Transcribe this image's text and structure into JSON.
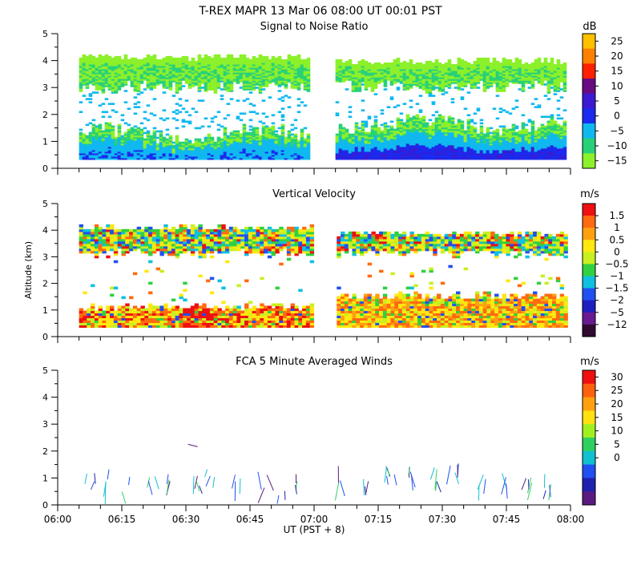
{
  "header": {
    "title": "T-REX   MAPR 13 Mar 06   08:00 UT   00:01   PST"
  },
  "x_axis": {
    "tick_labels": [
      "06:00",
      "06:15",
      "06:30",
      "06:45",
      "07:00",
      "07:15",
      "07:30",
      "07:45",
      "08:00"
    ],
    "label": "UT  (PST + 8)",
    "range_minutes": [
      0,
      120
    ]
  },
  "chart_data": [
    {
      "type": "heatmap",
      "title": "Signal to Noise Ratio",
      "ylabel": "",
      "ylim": [
        0,
        5
      ],
      "yticks": [
        "0",
        "1",
        "2",
        "3",
        "4",
        "5"
      ],
      "colorbar": {
        "unit": "dB",
        "labels": [
          "25",
          "20",
          "15",
          "10",
          "5",
          "0",
          "−5",
          "−10",
          "−15"
        ],
        "colors": [
          "#ffc000",
          "#ff8000",
          "#ff2000",
          "#6a0a80",
          "#3c1ad2",
          "#1a2aee",
          "#10b8f0",
          "#28d07a",
          "#8cf02a"
        ]
      },
      "data_gaps_minutes": [
        [
          0,
          5
        ],
        [
          59,
          65
        ],
        [
          119,
          120
        ]
      ]
    },
    {
      "type": "heatmap",
      "title": "Vertical Velocity",
      "ylabel": "Altitude (km)",
      "ylim": [
        0,
        5
      ],
      "yticks": [
        "0",
        "1",
        "2",
        "3",
        "4",
        "5"
      ],
      "colorbar": {
        "unit": "m/s",
        "labels": [
          "1.5",
          "1",
          "0.5",
          "0",
          "−0.5",
          "−1",
          "−1.5",
          "−2",
          "−5",
          "−12"
        ],
        "colors": [
          "#ee1010",
          "#ff6a10",
          "#ffa010",
          "#ffe810",
          "#c8f020",
          "#30d040",
          "#10c0e0",
          "#2050f0",
          "#2020c0",
          "#6a1a90",
          "#300a30"
        ]
      },
      "data_gaps_minutes": [
        [
          0,
          5
        ],
        [
          59,
          65
        ],
        [
          119,
          120
        ]
      ]
    },
    {
      "type": "scatter",
      "title": "FCA 5 Minute Averaged Winds",
      "ylabel": "",
      "ylim": [
        0,
        5
      ],
      "yticks": [
        "0",
        "1",
        "2",
        "3",
        "4",
        "5"
      ],
      "colorbar": {
        "unit": "m/s",
        "labels": [
          "30",
          "25",
          "20",
          "15",
          "10",
          "5",
          "0"
        ],
        "colors": [
          "#ee1010",
          "#ff6010",
          "#ffa010",
          "#ffe010",
          "#a0f020",
          "#30d060",
          "#10c0d0",
          "#2050f0",
          "#2020b0",
          "#5a1a80"
        ]
      }
    }
  ]
}
